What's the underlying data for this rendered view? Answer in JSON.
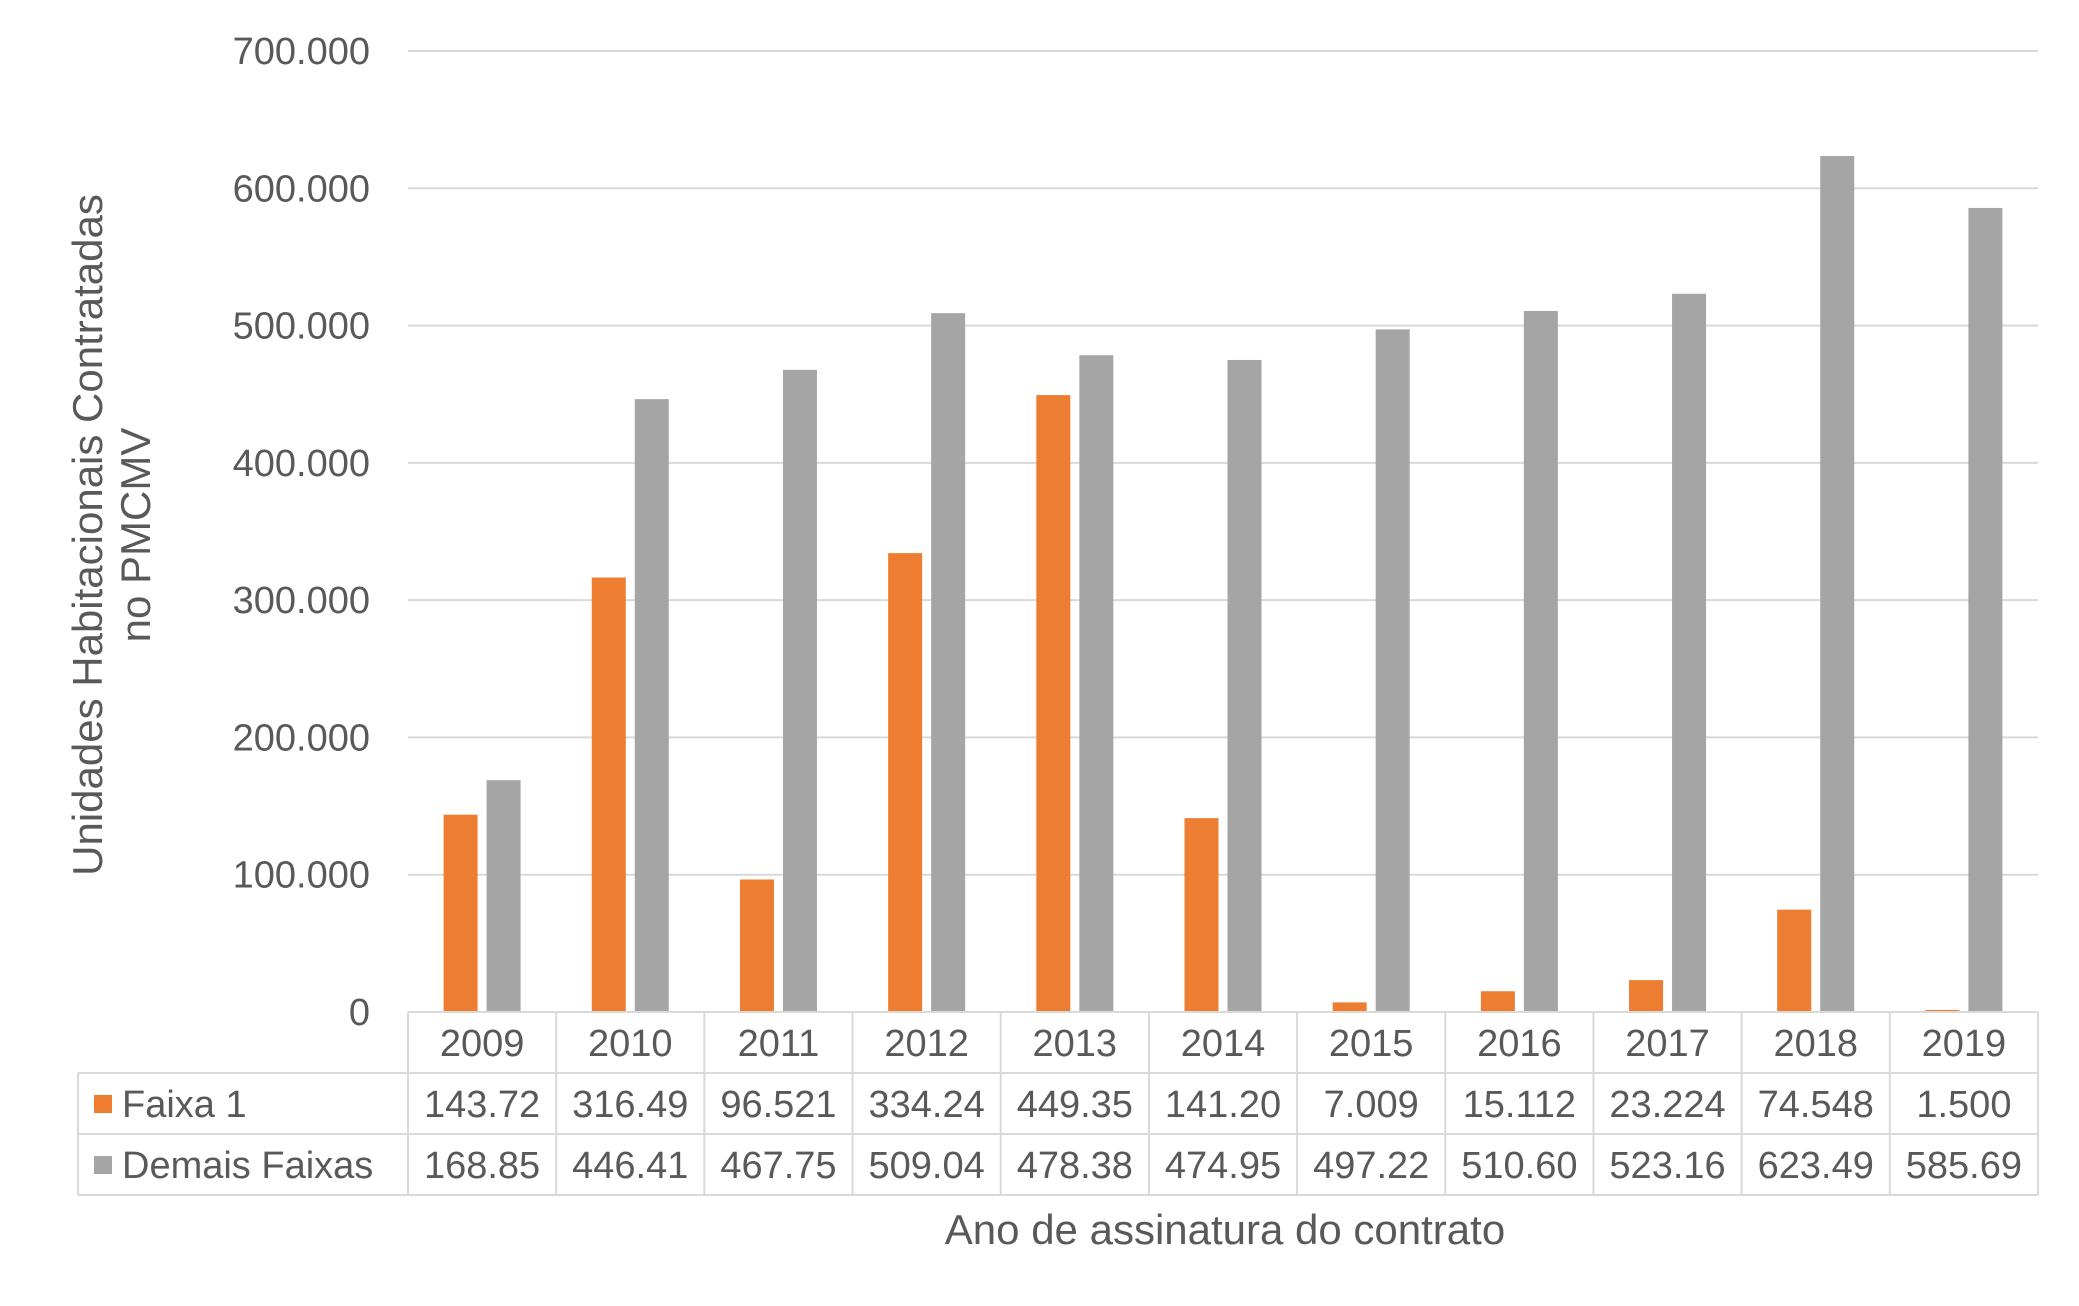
{
  "chart_data": {
    "type": "bar",
    "categories": [
      "2009",
      "2010",
      "2011",
      "2012",
      "2013",
      "2014",
      "2015",
      "2016",
      "2017",
      "2018",
      "2019"
    ],
    "series": [
      {
        "name": "Faixa 1",
        "color": "#ED7D31",
        "values": [
          143720,
          316490,
          96521,
          334240,
          449350,
          141200,
          7009,
          15112,
          23224,
          74548,
          1500
        ],
        "labels": [
          "143.72",
          "316.49",
          "96.521",
          "334.24",
          "449.35",
          "141.20",
          "7.009",
          "15.112",
          "23.224",
          "74.548",
          "1.500"
        ]
      },
      {
        "name": "Demais Faixas",
        "color": "#A5A5A5",
        "values": [
          168850,
          446410,
          467750,
          509040,
          478380,
          474950,
          497220,
          510600,
          523160,
          623490,
          585690
        ],
        "labels": [
          "168.85",
          "446.41",
          "467.75",
          "509.04",
          "478.38",
          "474.95",
          "497.22",
          "510.60",
          "523.16",
          "623.49",
          "585.69"
        ]
      }
    ],
    "yticks": [
      "0",
      "100.000",
      "200.000",
      "300.000",
      "400.000",
      "500.000",
      "600.000",
      "700.000"
    ],
    "ylim": [
      0,
      700000
    ],
    "ylabel_line1": "Unidades Habitacionais Contratadas",
    "ylabel_line2": "no PMCMV",
    "xlabel": "Ano de assinatura do contrato",
    "grid": true,
    "legend": "data-table"
  }
}
